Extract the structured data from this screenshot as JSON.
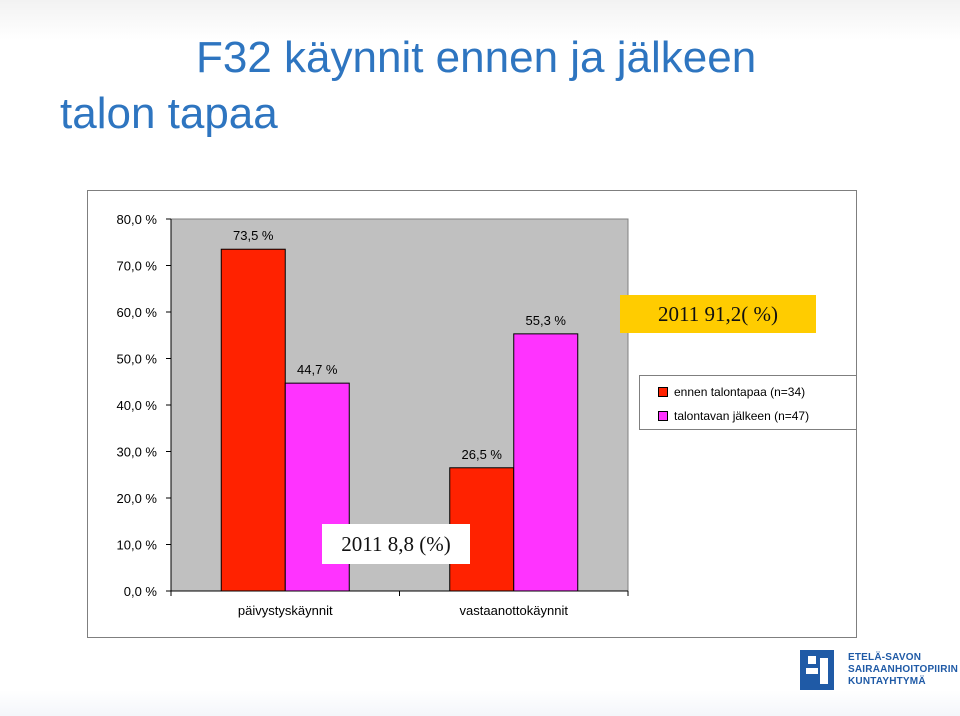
{
  "title": {
    "line1": "F32 käynnit ennen ja jälkeen",
    "line2": "talon tapaa"
  },
  "colors": {
    "title": "#2e75c0",
    "series_before": "#ff2200",
    "series_after": "#ff33ff",
    "plot_area": "#c0c0c0",
    "callout": "#ffcc00"
  },
  "chart_data": {
    "type": "bar",
    "categories": [
      "päivystyskäynnit",
      "vastaanottokäynnit"
    ],
    "series": [
      {
        "name": "ennen talontapaa (n=34)",
        "values": [
          73.5,
          26.5
        ],
        "labels": [
          "73,5 %",
          "26,5 %"
        ]
      },
      {
        "name": "talontavan jälkeen (n=47)",
        "values": [
          44.7,
          55.3
        ],
        "labels": [
          "44,7 %",
          "55,3 %"
        ]
      }
    ],
    "ylim": [
      0,
      80
    ],
    "yticks": [
      0,
      10,
      20,
      30,
      40,
      50,
      60,
      70,
      80
    ],
    "ytick_labels": [
      "0,0 %",
      "10,0 %",
      "20,0 %",
      "30,0 %",
      "40,0 %",
      "50,0 %",
      "60,0 %",
      "70,0 %",
      "80,0 %"
    ],
    "grid": false,
    "legend": "right"
  },
  "callouts": {
    "a": "2011 91,2( %)",
    "b": "2011 8,8 (%)"
  },
  "logo": {
    "line1": "ETELÄ-SAVON",
    "line2": "SAIRAANHOITOPIIRIN",
    "line3": "KUNTAYHTYMÄ"
  }
}
